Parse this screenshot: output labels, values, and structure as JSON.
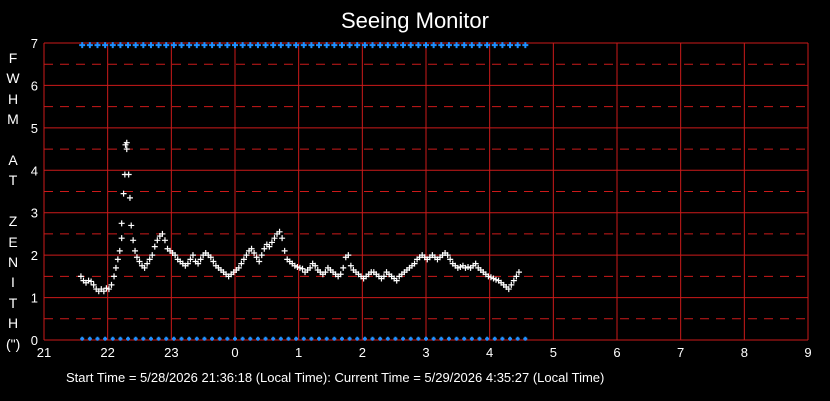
{
  "chart_data": {
    "type": "scatter",
    "title": "Seeing Monitor",
    "ylabel_chars": [
      "F",
      "W",
      "H",
      "M",
      "",
      "A",
      "T",
      "",
      "Z",
      "E",
      "N",
      "I",
      "T",
      "H",
      "(\")"
    ],
    "xticks": [
      "21",
      "22",
      "23",
      "0",
      "1",
      "2",
      "3",
      "4",
      "5",
      "6",
      "7",
      "8",
      "9"
    ],
    "yticks": [
      "0",
      "1",
      "2",
      "3",
      "4",
      "5",
      "6",
      "7"
    ],
    "ylim": [
      0,
      7
    ],
    "xlim": [
      21,
      33
    ],
    "grid": true,
    "colors": {
      "grid": "#cc1a1a",
      "data": "#ffffff",
      "marker": "#1e90ff"
    },
    "top_marker_band": {
      "y": 6.95,
      "x_start": 21.6,
      "x_end": 28.58
    },
    "bottom_marker_band": {
      "y": 0.03,
      "x_start": 21.6,
      "x_end": 28.58
    },
    "points": [
      [
        21.58,
        1.5
      ],
      [
        21.62,
        1.4
      ],
      [
        21.66,
        1.35
      ],
      [
        21.7,
        1.4
      ],
      [
        21.74,
        1.38
      ],
      [
        21.78,
        1.3
      ],
      [
        21.82,
        1.2
      ],
      [
        21.86,
        1.15
      ],
      [
        21.9,
        1.2
      ],
      [
        21.94,
        1.15
      ],
      [
        21.98,
        1.22
      ],
      [
        22.02,
        1.2
      ],
      [
        22.06,
        1.3
      ],
      [
        22.1,
        1.5
      ],
      [
        22.13,
        1.7
      ],
      [
        22.16,
        1.9
      ],
      [
        22.19,
        2.1
      ],
      [
        22.22,
        2.4
      ],
      [
        22.22,
        2.75
      ],
      [
        22.25,
        3.45
      ],
      [
        22.27,
        3.9
      ],
      [
        22.28,
        4.6
      ],
      [
        22.3,
        4.65
      ],
      [
        22.3,
        4.5
      ],
      [
        22.33,
        3.9
      ],
      [
        22.35,
        3.35
      ],
      [
        22.37,
        2.7
      ],
      [
        22.4,
        2.35
      ],
      [
        22.43,
        2.1
      ],
      [
        22.46,
        1.95
      ],
      [
        22.5,
        1.85
      ],
      [
        22.54,
        1.75
      ],
      [
        22.58,
        1.7
      ],
      [
        22.62,
        1.8
      ],
      [
        22.66,
        1.9
      ],
      [
        22.7,
        2.0
      ],
      [
        22.74,
        2.2
      ],
      [
        22.78,
        2.35
      ],
      [
        22.82,
        2.45
      ],
      [
        22.86,
        2.5
      ],
      [
        22.9,
        2.35
      ],
      [
        22.94,
        2.15
      ],
      [
        22.98,
        2.1
      ],
      [
        23.02,
        2.05
      ],
      [
        23.06,
        2.0
      ],
      [
        23.1,
        1.9
      ],
      [
        23.14,
        1.85
      ],
      [
        23.18,
        1.8
      ],
      [
        23.22,
        1.75
      ],
      [
        23.26,
        1.8
      ],
      [
        23.3,
        1.9
      ],
      [
        23.34,
        2.0
      ],
      [
        23.38,
        1.85
      ],
      [
        23.42,
        1.8
      ],
      [
        23.46,
        1.9
      ],
      [
        23.5,
        2.0
      ],
      [
        23.54,
        2.05
      ],
      [
        23.58,
        2.0
      ],
      [
        23.62,
        1.95
      ],
      [
        23.66,
        1.85
      ],
      [
        23.7,
        1.75
      ],
      [
        23.74,
        1.7
      ],
      [
        23.78,
        1.65
      ],
      [
        23.82,
        1.6
      ],
      [
        23.86,
        1.55
      ],
      [
        23.9,
        1.5
      ],
      [
        23.94,
        1.55
      ],
      [
        23.98,
        1.6
      ],
      [
        24.02,
        1.65
      ],
      [
        24.06,
        1.7
      ],
      [
        24.1,
        1.8
      ],
      [
        24.14,
        1.9
      ],
      [
        24.18,
        2.0
      ],
      [
        24.22,
        2.1
      ],
      [
        24.26,
        2.15
      ],
      [
        24.3,
        2.05
      ],
      [
        24.34,
        1.95
      ],
      [
        24.38,
        1.85
      ],
      [
        24.42,
        2.0
      ],
      [
        24.46,
        2.15
      ],
      [
        24.5,
        2.25
      ],
      [
        24.54,
        2.2
      ],
      [
        24.58,
        2.3
      ],
      [
        24.62,
        2.4
      ],
      [
        24.66,
        2.5
      ],
      [
        24.7,
        2.55
      ],
      [
        24.74,
        2.4
      ],
      [
        24.78,
        2.1
      ],
      [
        24.82,
        1.9
      ],
      [
        24.86,
        1.85
      ],
      [
        24.9,
        1.8
      ],
      [
        24.94,
        1.75
      ],
      [
        24.98,
        1.72
      ],
      [
        25.02,
        1.7
      ],
      [
        25.06,
        1.68
      ],
      [
        25.1,
        1.6
      ],
      [
        25.14,
        1.65
      ],
      [
        25.18,
        1.7
      ],
      [
        25.22,
        1.8
      ],
      [
        25.26,
        1.75
      ],
      [
        25.3,
        1.65
      ],
      [
        25.34,
        1.6
      ],
      [
        25.38,
        1.55
      ],
      [
        25.42,
        1.6
      ],
      [
        25.46,
        1.7
      ],
      [
        25.5,
        1.65
      ],
      [
        25.54,
        1.6
      ],
      [
        25.58,
        1.55
      ],
      [
        25.62,
        1.5
      ],
      [
        25.66,
        1.55
      ],
      [
        25.7,
        1.7
      ],
      [
        25.74,
        1.95
      ],
      [
        25.78,
        2.0
      ],
      [
        25.82,
        1.75
      ],
      [
        25.86,
        1.65
      ],
      [
        25.9,
        1.6
      ],
      [
        25.94,
        1.55
      ],
      [
        25.98,
        1.5
      ],
      [
        26.02,
        1.45
      ],
      [
        26.06,
        1.5
      ],
      [
        26.1,
        1.55
      ],
      [
        26.14,
        1.6
      ],
      [
        26.18,
        1.6
      ],
      [
        26.22,
        1.55
      ],
      [
        26.26,
        1.5
      ],
      [
        26.3,
        1.45
      ],
      [
        26.34,
        1.5
      ],
      [
        26.38,
        1.6
      ],
      [
        26.42,
        1.55
      ],
      [
        26.46,
        1.5
      ],
      [
        26.5,
        1.45
      ],
      [
        26.54,
        1.4
      ],
      [
        26.58,
        1.5
      ],
      [
        26.62,
        1.55
      ],
      [
        26.66,
        1.6
      ],
      [
        26.7,
        1.65
      ],
      [
        26.74,
        1.7
      ],
      [
        26.78,
        1.75
      ],
      [
        26.82,
        1.8
      ],
      [
        26.86,
        1.9
      ],
      [
        26.9,
        1.95
      ],
      [
        26.94,
        2.0
      ],
      [
        26.98,
        1.95
      ],
      [
        27.02,
        1.9
      ],
      [
        27.06,
        1.95
      ],
      [
        27.1,
        2.0
      ],
      [
        27.14,
        1.95
      ],
      [
        27.18,
        1.9
      ],
      [
        27.22,
        1.95
      ],
      [
        27.26,
        2.0
      ],
      [
        27.3,
        2.05
      ],
      [
        27.34,
        2.0
      ],
      [
        27.38,
        1.9
      ],
      [
        27.42,
        1.8
      ],
      [
        27.46,
        1.75
      ],
      [
        27.5,
        1.7
      ],
      [
        27.54,
        1.72
      ],
      [
        27.58,
        1.75
      ],
      [
        27.62,
        1.7
      ],
      [
        27.66,
        1.72
      ],
      [
        27.7,
        1.7
      ],
      [
        27.74,
        1.75
      ],
      [
        27.78,
        1.8
      ],
      [
        27.82,
        1.7
      ],
      [
        27.86,
        1.65
      ],
      [
        27.9,
        1.6
      ],
      [
        27.94,
        1.55
      ],
      [
        27.98,
        1.5
      ],
      [
        28.02,
        1.48
      ],
      [
        28.06,
        1.45
      ],
      [
        28.1,
        1.42
      ],
      [
        28.14,
        1.4
      ],
      [
        28.18,
        1.35
      ],
      [
        28.22,
        1.3
      ],
      [
        28.26,
        1.25
      ],
      [
        28.3,
        1.2
      ],
      [
        28.34,
        1.3
      ],
      [
        28.38,
        1.4
      ],
      [
        28.42,
        1.5
      ],
      [
        28.46,
        1.6
      ]
    ]
  },
  "footer": "Start Time = 5/28/2026  21:36:18 (Local Time):  Current Time = 5/29/2026  4:35:27 (Local Time)"
}
